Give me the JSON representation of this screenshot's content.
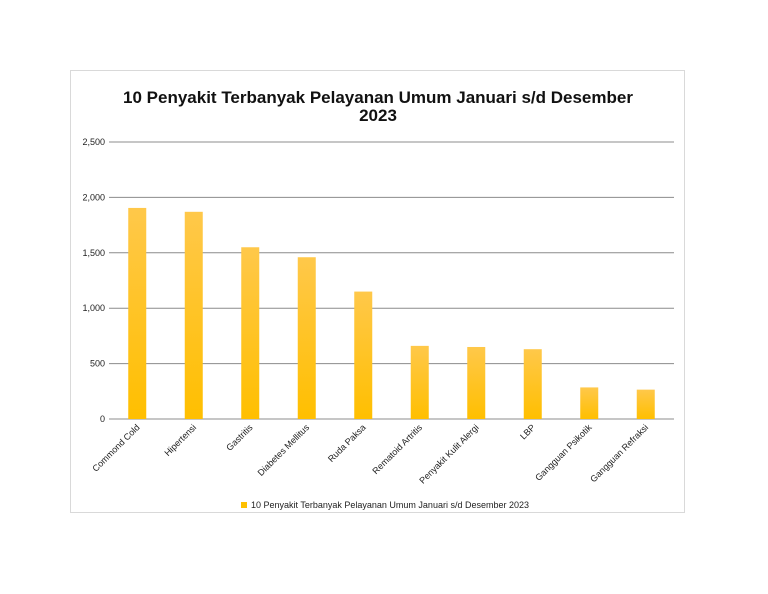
{
  "chart_data": {
    "type": "bar",
    "title_lines": [
      "10 Penyakit Terbanyak Pelayanan Umum Januari s/d Desember",
      "2023"
    ],
    "categories": [
      "Commond Cold",
      "Hipertensi",
      "Gastritis",
      "Diabetes Mellitus",
      "Ruda Paksa",
      "Rematoid Artritis",
      "Penyakit Kulit Alergi",
      "LBP",
      "Gangguan Psikotik",
      "Gangguan Refraksi"
    ],
    "series": [
      {
        "name": "10 Penyakit Terbanyak Pelayanan Umum Januari s/d Desember 2023",
        "values": [
          1905,
          1870,
          1550,
          1460,
          1150,
          660,
          650,
          630,
          285,
          265
        ],
        "color": "#fec000"
      }
    ],
    "ylim": [
      0,
      2500
    ],
    "yticks": [
      {
        "value": 0,
        "label": "0"
      },
      {
        "value": 500,
        "label": "500"
      },
      {
        "value": 1000,
        "label": "1,000"
      },
      {
        "value": 1500,
        "label": "1,500"
      },
      {
        "value": 2000,
        "label": "2,000"
      },
      {
        "value": 2500,
        "label": "2,500"
      }
    ],
    "grid": true,
    "legend_position": "bottom"
  }
}
